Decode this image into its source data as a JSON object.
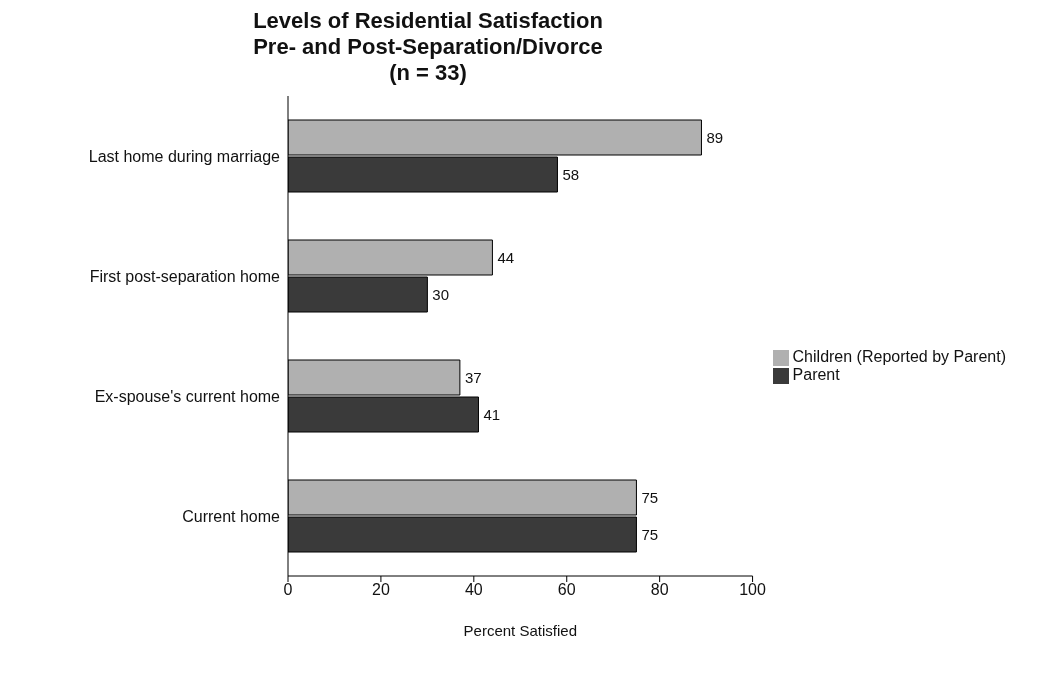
{
  "chart_data": {
    "type": "bar",
    "orientation": "horizontal",
    "title": "Levels of Residential Satisfaction\nPre- and Post-Separation/Divorce",
    "subtitle": "(n = 33)",
    "xlabel": "Percent Satisfied",
    "categories": [
      "Last home during marriage",
      "First post-separation home",
      "Ex-spouse's current home",
      "Current home"
    ],
    "series": [
      {
        "name": "Children (Reported by Parent)",
        "color": "#b0b0b0",
        "values": [
          89,
          44,
          37,
          75
        ]
      },
      {
        "name": "Parent",
        "color": "#3a3a3a",
        "values": [
          58,
          30,
          41,
          75
        ]
      }
    ],
    "xlim": [
      0,
      100
    ],
    "xticks": [
      0,
      20,
      40,
      60,
      80,
      100
    ],
    "grid": false,
    "legend": "right",
    "data_labels": true
  }
}
